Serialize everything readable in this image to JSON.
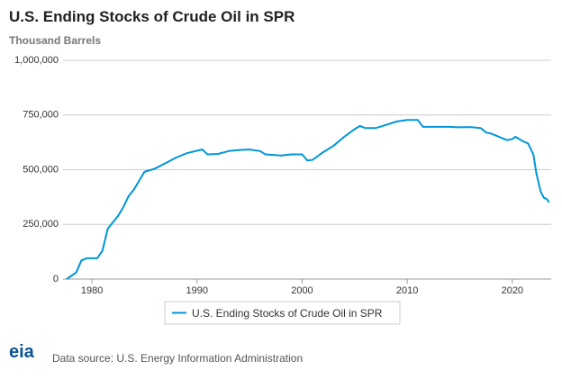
{
  "chart_data": {
    "type": "line",
    "title": "U.S. Ending Stocks of Crude Oil in SPR",
    "subtitle": "Thousand Barrels",
    "x": [
      1977.6,
      1978.5,
      1979,
      1979.5,
      1980.5,
      1981,
      1981.5,
      1982.5,
      1983,
      1983.5,
      1984,
      1984.5,
      1985,
      1986,
      1987,
      1988,
      1989,
      1990,
      1990.5,
      1991,
      1992,
      1993,
      1994,
      1995,
      1996,
      1996.5,
      1998,
      1999,
      2000,
      2000.5,
      2001,
      2002,
      2003,
      2004,
      2005,
      2005.5,
      2006,
      2007,
      2008,
      2009,
      2010,
      2011,
      2011.5,
      2014,
      2015,
      2016,
      2017,
      2017.5,
      2018,
      2019,
      2019.5,
      2020,
      2020.3,
      2021,
      2021.5,
      2022,
      2022.3,
      2022.7,
      2023,
      2023.3,
      2023.5
    ],
    "series": [
      {
        "name": "U.S. Ending Stocks of Crude Oil in SPR",
        "color": "#0096d7",
        "values": [
          0,
          30000,
          85000,
          95000,
          95000,
          130000,
          230000,
          290000,
          330000,
          380000,
          410000,
          450000,
          490000,
          505000,
          530000,
          555000,
          575000,
          587000,
          592000,
          570000,
          572000,
          585000,
          590000,
          592000,
          585000,
          570000,
          565000,
          570000,
          570000,
          542000,
          545000,
          580000,
          610000,
          650000,
          685000,
          700000,
          690000,
          690000,
          705000,
          720000,
          727000,
          727000,
          696000,
          696000,
          694000,
          695000,
          690000,
          670000,
          665000,
          645000,
          635000,
          640000,
          650000,
          630000,
          620000,
          570000,
          480000,
          400000,
          372000,
          365000,
          350000
        ]
      }
    ],
    "xlim": [
      1977.25,
      2023.7
    ],
    "xticks": [
      1980,
      1990,
      2000,
      2010,
      2020
    ],
    "ylim": [
      0,
      1000000
    ],
    "yticks": [
      0,
      {
        "value": 250000,
        "label": "250,000"
      },
      {
        "value": 500000,
        "label": "500,000"
      },
      {
        "value": 750000,
        "label": "750,000"
      },
      {
        "value": 1000000,
        "label": "1,000,000"
      }
    ],
    "grid": true,
    "source": "Data source: U.S. Energy Information Administration",
    "logo": "eia"
  }
}
